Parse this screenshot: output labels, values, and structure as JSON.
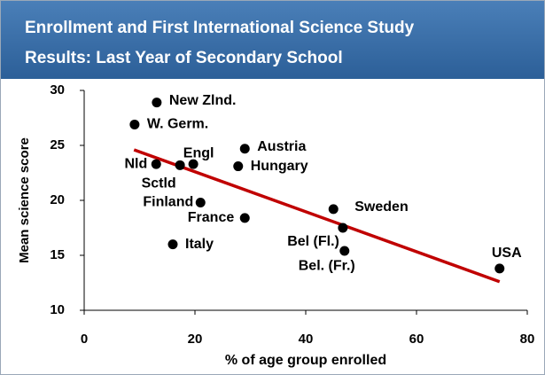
{
  "chart_data": {
    "type": "scatter",
    "title": [
      "Enrollment and First International Science Study",
      "Results: Last Year of Secondary School"
    ],
    "x_label": "% of age group enrolled",
    "y_label": "Mean science score",
    "xlim": [
      0,
      80
    ],
    "xticks": [
      0,
      20,
      40,
      60,
      80
    ],
    "ylim": [
      10,
      30
    ],
    "yticks": [
      10,
      15,
      20,
      25,
      30
    ],
    "series": [
      {
        "type": "scatter",
        "color": "#000000",
        "labels": [
          "New Zlnd.",
          "W. Germ.",
          "Austria",
          "Hungary",
          "Nld",
          "Sctld",
          "Engl",
          "Finland",
          "France",
          "Italy",
          "Sweden",
          "Bel (Fl.)",
          "Bel. (Fr.)",
          "USA"
        ],
        "x": [
          13.1,
          9.1,
          29,
          27.8,
          13,
          17.3,
          19.7,
          21,
          29,
          16,
          45,
          46.7,
          47,
          75
        ],
        "values": [
          28.9,
          26.9,
          24.7,
          23.1,
          23.3,
          23.2,
          23.3,
          19.8,
          18.4,
          16,
          19.2,
          17.5,
          15.4,
          13.8
        ]
      },
      {
        "type": "line",
        "color": "#c00000",
        "x": [
          9,
          75
        ],
        "values": [
          24.6,
          12.6
        ]
      }
    ]
  }
}
